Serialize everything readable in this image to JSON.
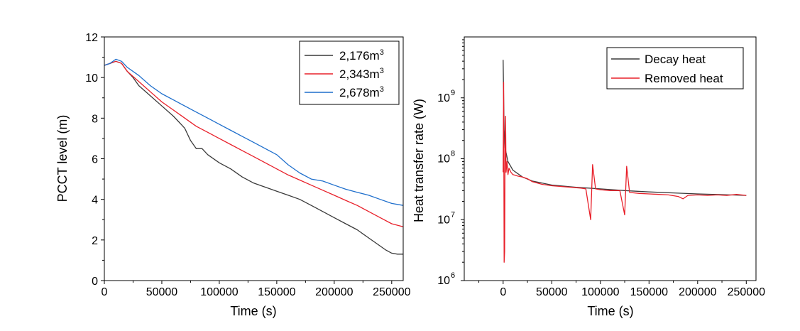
{
  "chart_data": [
    {
      "type": "line",
      "xlabel": "Time (s)",
      "ylabel": "PCCT level (m)",
      "xlim": [
        0,
        260000
      ],
      "ylim": [
        0,
        12
      ],
      "xticks": [
        "0",
        "50000",
        "100000",
        "150000",
        "200000",
        "250000"
      ],
      "yticks": [
        "0",
        "2",
        "4",
        "6",
        "8",
        "10",
        "12"
      ],
      "legend_position": "top-right",
      "series": [
        {
          "name": "2,176m",
          "superscript": "3",
          "color": "#3a3a3a",
          "x": [
            0,
            5000,
            10000,
            15000,
            20000,
            25000,
            30000,
            40000,
            50000,
            60000,
            65000,
            70000,
            75000,
            80000,
            85000,
            90000,
            100000,
            110000,
            120000,
            130000,
            140000,
            150000,
            160000,
            170000,
            180000,
            190000,
            200000,
            210000,
            220000,
            230000,
            240000,
            245000,
            250000,
            255000,
            260000
          ],
          "y": [
            10.6,
            10.7,
            10.8,
            10.7,
            10.3,
            10.0,
            9.6,
            9.1,
            8.6,
            8.1,
            7.8,
            7.5,
            6.9,
            6.5,
            6.5,
            6.2,
            5.8,
            5.5,
            5.1,
            4.8,
            4.6,
            4.4,
            4.2,
            4.0,
            3.7,
            3.4,
            3.1,
            2.8,
            2.5,
            2.1,
            1.7,
            1.5,
            1.35,
            1.3,
            1.3
          ]
        },
        {
          "name": "2,343m",
          "superscript": "3",
          "color": "#e8202a",
          "x": [
            0,
            5000,
            10000,
            15000,
            20000,
            30000,
            40000,
            50000,
            60000,
            70000,
            80000,
            90000,
            100000,
            110000,
            120000,
            130000,
            140000,
            150000,
            160000,
            170000,
            180000,
            190000,
            200000,
            210000,
            220000,
            230000,
            240000,
            250000,
            260000
          ],
          "y": [
            10.6,
            10.7,
            10.8,
            10.7,
            10.3,
            9.8,
            9.3,
            8.8,
            8.4,
            8.0,
            7.6,
            7.3,
            7.0,
            6.7,
            6.4,
            6.1,
            5.8,
            5.5,
            5.2,
            4.95,
            4.7,
            4.45,
            4.2,
            3.95,
            3.7,
            3.4,
            3.1,
            2.8,
            2.65
          ]
        },
        {
          "name": "2,678m",
          "superscript": "3",
          "color": "#1f6fcc",
          "x": [
            0,
            5000,
            10000,
            15000,
            20000,
            30000,
            40000,
            50000,
            60000,
            70000,
            80000,
            90000,
            100000,
            110000,
            120000,
            130000,
            140000,
            150000,
            160000,
            170000,
            180000,
            190000,
            200000,
            210000,
            220000,
            230000,
            240000,
            250000,
            260000
          ],
          "y": [
            10.6,
            10.7,
            10.9,
            10.8,
            10.5,
            10.1,
            9.6,
            9.2,
            8.9,
            8.6,
            8.3,
            8.0,
            7.7,
            7.4,
            7.1,
            6.8,
            6.5,
            6.2,
            5.7,
            5.3,
            5.0,
            4.9,
            4.7,
            4.5,
            4.35,
            4.2,
            4.0,
            3.8,
            3.7
          ]
        }
      ]
    },
    {
      "type": "line",
      "yscale": "log",
      "xlabel": "Time (s)",
      "ylabel": "Heat transfer rate (W)",
      "xlim": [
        -40000,
        260000
      ],
      "ylim": [
        1000000,
        10000000000
      ],
      "xticks": [
        "0",
        "50000",
        "100000",
        "150000",
        "200000",
        "250000"
      ],
      "yticks": [
        {
          "base": "10",
          "exp": "6"
        },
        {
          "base": "10",
          "exp": "7"
        },
        {
          "base": "10",
          "exp": "8"
        },
        {
          "base": "10",
          "exp": "9"
        }
      ],
      "legend_position": "top-right",
      "series": [
        {
          "name": "Decay heat",
          "color": "#3a3a3a",
          "x": [
            0,
            500,
            1000,
            2000,
            5000,
            10000,
            20000,
            30000,
            50000,
            75000,
            100000,
            125000,
            150000,
            175000,
            200000,
            225000,
            250000
          ],
          "y": [
            4200000000,
            1000000000,
            300000000,
            150000000,
            90000000,
            65000000,
            50000000,
            43000000,
            37000000,
            34000000,
            32000000,
            30000000,
            28500000,
            27500000,
            26500000,
            25800000,
            25000000
          ]
        },
        {
          "name": "Removed heat",
          "color": "#e8202a",
          "x": [
            0,
            500,
            1000,
            1500,
            2000,
            2500,
            3000,
            4000,
            5000,
            6000,
            8000,
            10000,
            15000,
            20000,
            25000,
            30000,
            40000,
            50000,
            60000,
            70000,
            80000,
            85000,
            90000,
            92000,
            95000,
            100000,
            110000,
            120000,
            125000,
            127000,
            130000,
            140000,
            150000,
            160000,
            170000,
            180000,
            185000,
            190000,
            200000,
            210000,
            220000,
            230000,
            240000,
            250000
          ],
          "y": [
            60000000,
            1800000000,
            2000000,
            3000000,
            150000000,
            500000000,
            60000000,
            90000000,
            55000000,
            70000000,
            60000000,
            55000000,
            52000000,
            50000000,
            47000000,
            42000000,
            38000000,
            36000000,
            35000000,
            34000000,
            33000000,
            32000000,
            10000000,
            80000000,
            32000000,
            31000000,
            30000000,
            30000000,
            12000000,
            75000000,
            28000000,
            27000000,
            26500000,
            26000000,
            25500000,
            24000000,
            22000000,
            25000000,
            25500000,
            25000000,
            25500000,
            25000000,
            26000000,
            25000000
          ]
        }
      ]
    }
  ]
}
